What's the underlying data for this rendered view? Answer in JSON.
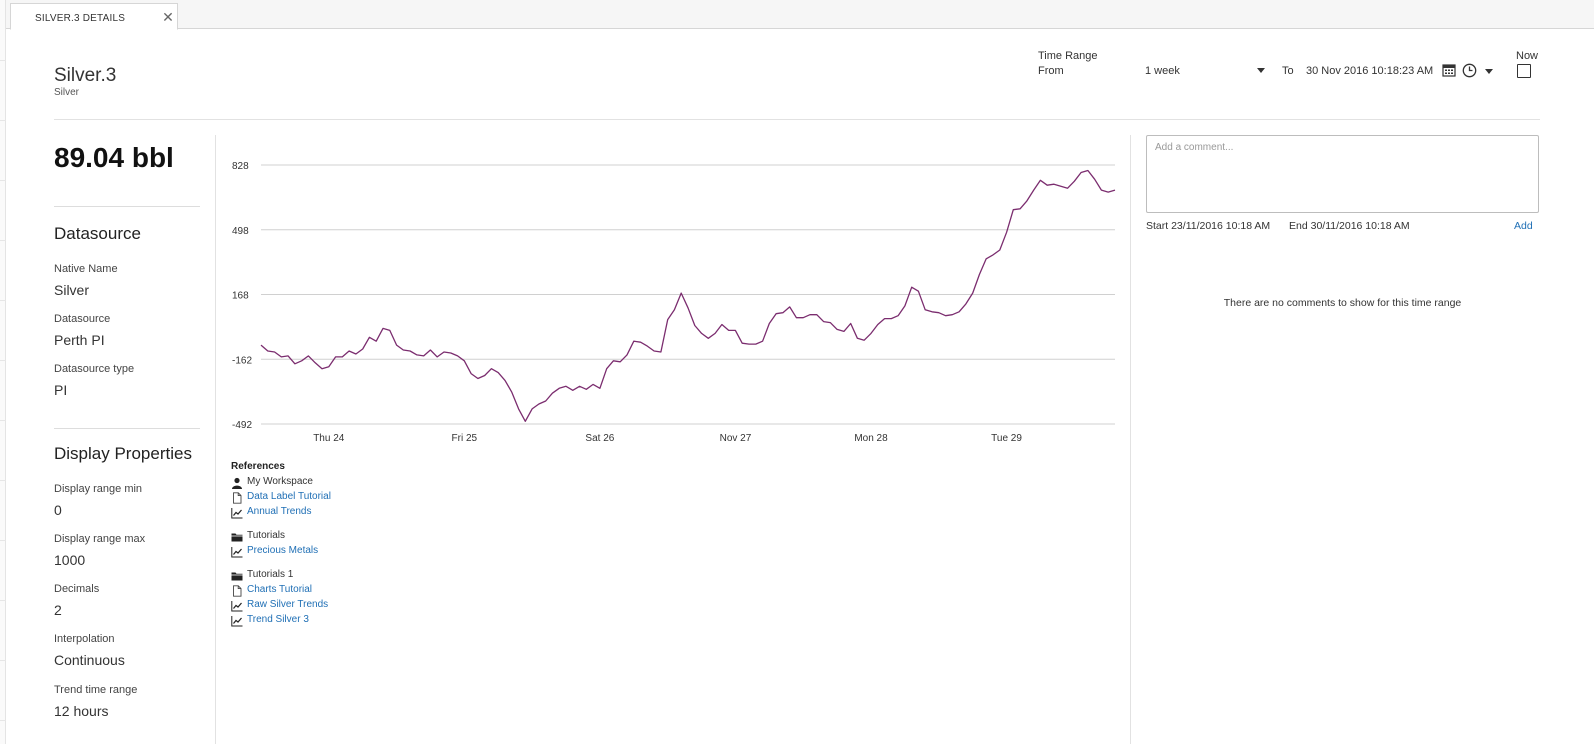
{
  "tab": {
    "label": "SILVER.3 DETAILS"
  },
  "header": {
    "title": "Silver.3",
    "subtitle": "Silver",
    "time_range_label": "Time Range",
    "from_label": "From",
    "range_value": "1 week",
    "to_label": "To",
    "to_date": "30 Nov 2016 10:18:23 AM",
    "now_label": "Now",
    "now_checked": false
  },
  "summary": {
    "value": "89.04 bbl"
  },
  "datasource": {
    "heading": "Datasource",
    "native_name_label": "Native Name",
    "native_name": "Silver",
    "datasource_label": "Datasource",
    "datasource": "Perth PI",
    "type_label": "Datasource type",
    "type": "PI"
  },
  "display_properties": {
    "heading": "Display Properties",
    "min_label": "Display range min",
    "min": "0",
    "max_label": "Display range max",
    "max": "1000",
    "decimals_label": "Decimals",
    "decimals": "2",
    "interpolation_label": "Interpolation",
    "interpolation": "Continuous",
    "trend_label": "Trend time range",
    "trend": "12 hours"
  },
  "chart_data": {
    "type": "line",
    "y_ticks": [
      "828",
      "498",
      "168",
      "-162",
      "-492"
    ],
    "ylim": [
      -492,
      828
    ],
    "x_ticks": [
      "Thu 24",
      "Fri 25",
      "Sat 26",
      "Nov 27",
      "Mon 28",
      "Tue 29"
    ],
    "x_tick_positions": [
      0.5,
      1.5,
      2.5,
      3.5,
      4.5,
      5.5
    ],
    "xlim": [
      0,
      6.3
    ],
    "grid": true,
    "line_color": "#7b2d6f",
    "series": [
      {
        "values": [
          [
            0.0,
            -90
          ],
          [
            0.05,
            -120
          ],
          [
            0.1,
            -125
          ],
          [
            0.15,
            -150
          ],
          [
            0.2,
            -145
          ],
          [
            0.25,
            -185
          ],
          [
            0.3,
            -170
          ],
          [
            0.35,
            -145
          ],
          [
            0.4,
            -180
          ],
          [
            0.45,
            -210
          ],
          [
            0.5,
            -200
          ],
          [
            0.55,
            -150
          ],
          [
            0.6,
            -150
          ],
          [
            0.65,
            -120
          ],
          [
            0.7,
            -135
          ],
          [
            0.75,
            -110
          ],
          [
            0.8,
            -50
          ],
          [
            0.85,
            -70
          ],
          [
            0.9,
            -5
          ],
          [
            0.95,
            -15
          ],
          [
            1.0,
            -90
          ],
          [
            1.05,
            -115
          ],
          [
            1.1,
            -120
          ],
          [
            1.15,
            -140
          ],
          [
            1.2,
            -145
          ],
          [
            1.25,
            -115
          ],
          [
            1.3,
            -150
          ],
          [
            1.35,
            -125
          ],
          [
            1.4,
            -130
          ],
          [
            1.45,
            -145
          ],
          [
            1.5,
            -170
          ],
          [
            1.55,
            -235
          ],
          [
            1.6,
            -260
          ],
          [
            1.65,
            -245
          ],
          [
            1.7,
            -210
          ],
          [
            1.75,
            -230
          ],
          [
            1.8,
            -270
          ],
          [
            1.85,
            -330
          ],
          [
            1.9,
            -415
          ],
          [
            1.95,
            -478
          ],
          [
            2.0,
            -415
          ],
          [
            2.05,
            -390
          ],
          [
            2.1,
            -375
          ],
          [
            2.15,
            -335
          ],
          [
            2.2,
            -310
          ],
          [
            2.25,
            -300
          ],
          [
            2.3,
            -320
          ],
          [
            2.35,
            -300
          ],
          [
            2.4,
            -315
          ],
          [
            2.45,
            -290
          ],
          [
            2.5,
            -310
          ],
          [
            2.55,
            -210
          ],
          [
            2.6,
            -170
          ],
          [
            2.65,
            -175
          ],
          [
            2.7,
            -140
          ],
          [
            2.75,
            -70
          ],
          [
            2.8,
            -75
          ],
          [
            2.85,
            -95
          ],
          [
            2.9,
            -120
          ],
          [
            2.95,
            -125
          ],
          [
            3.0,
            40
          ],
          [
            3.05,
            90
          ],
          [
            3.1,
            175
          ],
          [
            3.15,
            100
          ],
          [
            3.2,
            10
          ],
          [
            3.25,
            -30
          ],
          [
            3.3,
            -55
          ],
          [
            3.35,
            -30
          ],
          [
            3.4,
            15
          ],
          [
            3.45,
            -15
          ],
          [
            3.5,
            -15
          ],
          [
            3.55,
            -80
          ],
          [
            3.6,
            -85
          ],
          [
            3.65,
            -85
          ],
          [
            3.7,
            -70
          ],
          [
            3.75,
            20
          ],
          [
            3.8,
            70
          ],
          [
            3.85,
            75
          ],
          [
            3.9,
            105
          ],
          [
            3.95,
            50
          ],
          [
            4.0,
            50
          ],
          [
            4.05,
            65
          ],
          [
            4.1,
            65
          ],
          [
            4.15,
            30
          ],
          [
            4.2,
            25
          ],
          [
            4.25,
            -10
          ],
          [
            4.3,
            -20
          ],
          [
            4.35,
            20
          ],
          [
            4.4,
            -55
          ],
          [
            4.45,
            -65
          ],
          [
            4.5,
            -30
          ],
          [
            4.55,
            15
          ],
          [
            4.6,
            45
          ],
          [
            4.65,
            45
          ],
          [
            4.7,
            60
          ],
          [
            4.75,
            110
          ],
          [
            4.8,
            205
          ],
          [
            4.85,
            185
          ],
          [
            4.9,
            90
          ],
          [
            4.95,
            80
          ],
          [
            5.0,
            75
          ],
          [
            5.05,
            60
          ],
          [
            5.1,
            65
          ],
          [
            5.15,
            80
          ],
          [
            5.2,
            120
          ],
          [
            5.25,
            175
          ],
          [
            5.3,
            270
          ],
          [
            5.35,
            350
          ],
          [
            5.4,
            370
          ],
          [
            5.45,
            395
          ],
          [
            5.5,
            485
          ],
          [
            5.55,
            600
          ],
          [
            5.6,
            605
          ],
          [
            5.65,
            645
          ],
          [
            5.7,
            700
          ],
          [
            5.75,
            750
          ],
          [
            5.8,
            725
          ],
          [
            5.85,
            730
          ],
          [
            5.9,
            720
          ],
          [
            5.95,
            710
          ],
          [
            6.0,
            745
          ],
          [
            6.05,
            790
          ],
          [
            6.1,
            800
          ],
          [
            6.15,
            755
          ],
          [
            6.2,
            700
          ],
          [
            6.25,
            690
          ],
          [
            6.3,
            700
          ]
        ]
      }
    ]
  },
  "references": {
    "title": "References",
    "groups": [
      {
        "name": "My Workspace",
        "icon": "user-icon",
        "items": [
          {
            "label": "Data Label Tutorial",
            "icon": "document-icon"
          },
          {
            "label": "Annual Trends",
            "icon": "trend-icon"
          }
        ]
      },
      {
        "name": "Tutorials",
        "icon": "folder-icon",
        "items": [
          {
            "label": "Precious Metals",
            "icon": "trend-icon"
          }
        ]
      },
      {
        "name": "Tutorials 1",
        "icon": "folder-icon",
        "items": [
          {
            "label": "Charts Tutorial",
            "icon": "document-icon"
          },
          {
            "label": "Raw Silver Trends",
            "icon": "trend-icon"
          },
          {
            "label": "Trend Silver 3",
            "icon": "trend-icon"
          }
        ]
      }
    ]
  },
  "comments": {
    "placeholder": "Add a comment...",
    "start": "Start 23/11/2016 10:18 AM",
    "end": "End 30/11/2016 10:18 AM",
    "add_label": "Add",
    "empty_message": "There are no comments to show for this time range"
  },
  "colors": {
    "link": "#1f6fb5",
    "series": "#7b2d6f"
  }
}
